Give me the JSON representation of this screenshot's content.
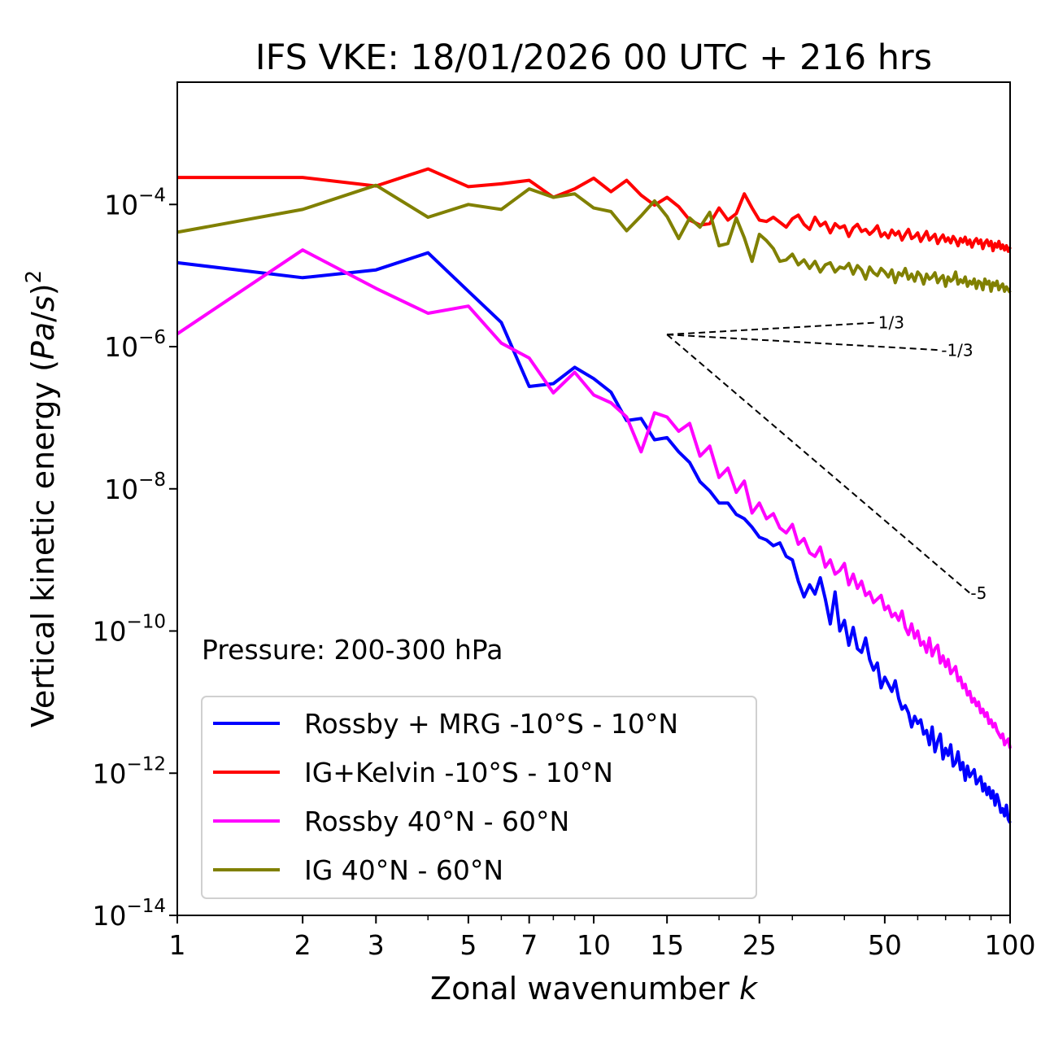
{
  "chart_data": {
    "type": "line",
    "title": "IFS VKE: 18/01/2026 00 UTC + 216 hrs",
    "xlabel": "Zonal wavenumber k",
    "ylabel": "Vertical kinetic energy (Pa/s)^2",
    "xscale": "log",
    "yscale": "log",
    "xlim": [
      1,
      100
    ],
    "ylim_log10": [
      -14,
      -2.28
    ],
    "xticks": [
      1,
      2,
      3,
      5,
      7,
      10,
      15,
      25,
      50,
      100
    ],
    "xtick_labels": [
      "1",
      "2",
      "3",
      "5",
      "7",
      "10",
      "15",
      "25",
      "50",
      "100"
    ],
    "yticks_log10": [
      -4,
      -6,
      -8,
      -10,
      -12,
      -14
    ],
    "ytick_labels": [
      {
        "base": "10",
        "exp": "−4"
      },
      {
        "base": "10",
        "exp": "−6"
      },
      {
        "base": "10",
        "exp": "−8"
      },
      {
        "base": "10",
        "exp": "−10"
      },
      {
        "base": "10",
        "exp": "−12"
      },
      {
        "base": "10",
        "exp": "−14"
      }
    ],
    "grid": false,
    "legend_position": "lower-left",
    "annotation": "Pressure: 200-300 hPa",
    "reference_slopes": {
      "origin_k": 15,
      "origin_log10": -5.83,
      "lines": [
        {
          "slope": "1/3",
          "label": "1/3",
          "k_end": 48
        },
        {
          "slope": "-1/3",
          "label": "-1/3",
          "k_end": 68
        },
        {
          "slope": "-5",
          "label": "-5",
          "k_end": 80
        }
      ]
    },
    "series": [
      {
        "name": "Rossby + MRG -10°S - 10°N",
        "color": "#0000ff",
        "log10_values": [
          -4.82,
          -5.03,
          -4.92,
          -4.68,
          -5.22,
          -5.66,
          -6.56,
          -6.52,
          -6.29,
          -6.45,
          -6.64,
          -7.04,
          -7.01,
          -7.31,
          -7.28,
          -7.48,
          -7.63,
          -7.9,
          -8.03,
          -8.2,
          -8.2,
          -8.36,
          -8.42,
          -8.54,
          -8.68,
          -8.72,
          -8.8,
          -8.76,
          -8.95,
          -9.0,
          -9.3,
          -9.52,
          -9.35,
          -9.48,
          -9.25,
          -9.55,
          -9.9,
          -9.45,
          -10.0,
          -9.85,
          -10.2,
          -9.95,
          -10.25,
          -10.3,
          -10.1,
          -10.4,
          -10.55,
          -10.45,
          -10.8,
          -10.65,
          -10.75,
          -10.85,
          -10.7,
          -10.95,
          -11.1,
          -11.05,
          -11.15,
          -11.35,
          -11.2,
          -11.3,
          -11.25,
          -11.45,
          -11.4,
          -11.6,
          -11.35,
          -11.7,
          -11.55,
          -11.45,
          -11.8,
          -11.65,
          -11.75,
          -11.6,
          -11.9,
          -11.85,
          -11.7,
          -11.95,
          -11.85,
          -12.1,
          -11.9,
          -12.05,
          -12.0,
          -11.95,
          -12.15,
          -12.1,
          -12.05,
          -12.25,
          -12.15,
          -12.3,
          -12.2,
          -12.35,
          -12.25,
          -12.45,
          -12.3,
          -12.4,
          -12.55,
          -12.5,
          -12.6,
          -12.45,
          -12.65,
          -12.7
        ]
      },
      {
        "name": "IG+Kelvin -10°S - 10°N",
        "color": "#ff0000",
        "log10_values": [
          -3.62,
          -3.62,
          -3.74,
          -3.5,
          -3.75,
          -3.71,
          -3.66,
          -3.9,
          -3.78,
          -3.63,
          -3.82,
          -3.66,
          -3.87,
          -4.01,
          -3.9,
          -4.03,
          -4.22,
          -4.29,
          -4.27,
          -4.05,
          -4.22,
          -4.13,
          -3.85,
          -4.05,
          -4.22,
          -4.24,
          -4.18,
          -4.25,
          -4.32,
          -4.2,
          -4.15,
          -4.28,
          -4.35,
          -4.18,
          -4.3,
          -4.25,
          -4.4,
          -4.27,
          -4.33,
          -4.3,
          -4.45,
          -4.33,
          -4.28,
          -4.38,
          -4.35,
          -4.42,
          -4.37,
          -4.3,
          -4.45,
          -4.4,
          -4.47,
          -4.36,
          -4.43,
          -4.38,
          -4.5,
          -4.42,
          -4.35,
          -4.48,
          -4.45,
          -4.4,
          -4.52,
          -4.45,
          -4.38,
          -4.5,
          -4.46,
          -4.42,
          -4.55,
          -4.48,
          -4.43,
          -4.52,
          -4.47,
          -4.54,
          -4.45,
          -4.5,
          -4.58,
          -4.48,
          -4.53,
          -4.46,
          -4.56,
          -4.5,
          -4.6,
          -4.52,
          -4.48,
          -4.55,
          -4.5,
          -4.62,
          -4.54,
          -4.5,
          -4.58,
          -4.52,
          -4.65,
          -4.55,
          -4.6,
          -4.52,
          -4.62,
          -4.57,
          -4.64,
          -4.58,
          -4.66,
          -4.6
        ]
      },
      {
        "name": "Rossby 40°N - 60°N",
        "color": "#ff00ff",
        "log10_values": [
          -5.82,
          -4.64,
          -5.18,
          -5.53,
          -5.43,
          -5.95,
          -6.16,
          -6.65,
          -6.36,
          -6.68,
          -6.79,
          -6.99,
          -7.48,
          -6.93,
          -6.99,
          -7.19,
          -7.08,
          -7.54,
          -7.4,
          -7.84,
          -7.71,
          -8.05,
          -7.89,
          -8.34,
          -8.2,
          -8.42,
          -8.35,
          -8.55,
          -8.62,
          -8.5,
          -8.78,
          -8.7,
          -8.9,
          -8.95,
          -8.82,
          -9.1,
          -9.0,
          -9.2,
          -9.15,
          -9.05,
          -9.35,
          -9.2,
          -9.4,
          -9.3,
          -9.5,
          -9.45,
          -9.6,
          -9.55,
          -9.5,
          -9.7,
          -9.65,
          -9.8,
          -9.75,
          -9.85,
          -9.72,
          -9.95,
          -10.05,
          -9.9,
          -10.1,
          -10.0,
          -10.2,
          -10.15,
          -10.3,
          -10.1,
          -10.35,
          -10.25,
          -10.2,
          -10.45,
          -10.35,
          -10.5,
          -10.4,
          -10.6,
          -10.55,
          -10.5,
          -10.7,
          -10.65,
          -10.8,
          -10.75,
          -10.9,
          -10.85,
          -11.0,
          -10.95,
          -11.05,
          -11.0,
          -11.15,
          -11.1,
          -11.2,
          -11.15,
          -11.3,
          -11.25,
          -11.35,
          -11.3,
          -11.4,
          -11.45,
          -11.5,
          -11.45,
          -11.6,
          -11.55,
          -11.52,
          -11.65
        ]
      },
      {
        "name": "IG 40°N - 60°N",
        "color": "#808000",
        "log10_values": [
          -4.39,
          -4.07,
          -3.73,
          -4.18,
          -4.0,
          -4.07,
          -3.78,
          -3.9,
          -3.85,
          -4.05,
          -4.1,
          -4.37,
          -4.16,
          -3.95,
          -4.17,
          -4.48,
          -4.19,
          -4.32,
          -4.11,
          -4.58,
          -4.55,
          -4.19,
          -4.47,
          -4.8,
          -4.42,
          -4.51,
          -4.62,
          -4.8,
          -4.78,
          -4.7,
          -4.85,
          -4.78,
          -4.9,
          -4.8,
          -4.95,
          -4.85,
          -4.82,
          -4.95,
          -4.88,
          -4.9,
          -4.83,
          -4.98,
          -4.86,
          -4.92,
          -5.05,
          -4.88,
          -4.96,
          -5.0,
          -4.9,
          -4.95,
          -5.02,
          -4.92,
          -5.1,
          -4.96,
          -5.0,
          -4.9,
          -5.05,
          -4.98,
          -5.08,
          -4.95,
          -5.0,
          -5.12,
          -4.98,
          -5.05,
          -5.02,
          -4.96,
          -5.1,
          -5.04,
          -5.0,
          -5.15,
          -5.02,
          -5.08,
          -5.05,
          -4.95,
          -5.12,
          -5.06,
          -5.1,
          -5.02,
          -5.15,
          -5.08,
          -5.12,
          -5.05,
          -5.18,
          -5.08,
          -5.1,
          -5.2,
          -5.05,
          -5.12,
          -5.08,
          -5.22,
          -5.1,
          -5.14,
          -5.08,
          -5.2,
          -5.15,
          -5.12,
          -5.22,
          -5.16,
          -5.2,
          -5.24
        ]
      }
    ]
  }
}
